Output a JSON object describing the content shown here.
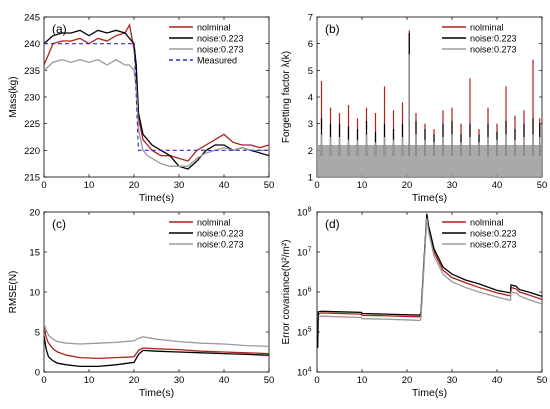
{
  "colors": {
    "nominal": "#b0201c",
    "noise223": "#000000",
    "noise273": "#9a9a9a",
    "measured": "#2b2bd6",
    "highlight": "#f2a0b6"
  },
  "chart_data": [
    {
      "panel_label": "(a)",
      "type": "line",
      "xlabel": "Time(s)",
      "ylabel": "Mass(kg)",
      "xlim": [
        0,
        50
      ],
      "ylim": [
        215,
        245
      ],
      "xticks": [
        0,
        10,
        20,
        30,
        40,
        50
      ],
      "yticks": [
        215,
        220,
        225,
        230,
        235,
        240,
        245
      ],
      "xtick_labels": [
        "0",
        "10",
        "20",
        "30",
        "40",
        "50"
      ],
      "ytick_labels": [
        "215",
        "220",
        "225",
        "230",
        "235",
        "240",
        "245"
      ],
      "legend_position": "top-right",
      "legend": [
        "nolminal",
        "noise:0.223",
        "noise:0.273",
        "Measured"
      ],
      "series": [
        {
          "name": "nolminal",
          "color_key": "nominal",
          "x": [
            0,
            2,
            4,
            6,
            8,
            10,
            12,
            14,
            16,
            18,
            19,
            20,
            20.5,
            21,
            22,
            23,
            24,
            26,
            28,
            30,
            32,
            34,
            36,
            38,
            40,
            42,
            44,
            46,
            48,
            50
          ],
          "y": [
            236,
            240,
            240.5,
            240.5,
            241,
            240,
            241,
            240.5,
            241.5,
            242,
            243.5,
            239,
            235,
            226,
            222,
            221,
            220,
            219,
            219,
            218.5,
            218,
            220,
            221,
            222,
            223,
            221.5,
            221,
            221,
            220.5,
            221
          ]
        },
        {
          "name": "noise:0.223",
          "color_key": "noise223",
          "x": [
            0,
            2,
            4,
            6,
            8,
            10,
            12,
            14,
            16,
            18,
            19,
            20,
            20.5,
            21,
            22,
            23,
            24,
            26,
            28,
            30,
            32,
            34,
            36,
            38,
            40,
            42,
            44,
            46,
            48,
            50
          ],
          "y": [
            240,
            241.5,
            242,
            242,
            242.5,
            241.5,
            242.5,
            242,
            242.5,
            242,
            241,
            240,
            236,
            227,
            223,
            222,
            221,
            220,
            219,
            217,
            216.5,
            218,
            220,
            221,
            221,
            220,
            220.5,
            220,
            219.5,
            219
          ]
        },
        {
          "name": "noise:0.273",
          "color_key": "noise273",
          "x": [
            0,
            2,
            4,
            6,
            8,
            10,
            12,
            14,
            16,
            18,
            19,
            20,
            20.5,
            21,
            22,
            23,
            24,
            26,
            28,
            30,
            32,
            34,
            36,
            38,
            40,
            42,
            44,
            46,
            48,
            50
          ],
          "y": [
            235,
            236.5,
            237,
            236.5,
            237,
            236.5,
            237,
            236,
            237,
            236,
            236,
            235,
            232,
            224,
            220,
            219,
            218.5,
            217.5,
            217,
            217,
            217,
            218.5,
            219.5,
            220,
            220.5,
            220,
            220.5,
            220,
            220,
            220
          ]
        },
        {
          "name": "Measured",
          "color_key": "measured",
          "dashed": true,
          "x": [
            0,
            20,
            21,
            50
          ],
          "y": [
            240,
            240,
            220,
            220
          ]
        }
      ]
    },
    {
      "panel_label": "(b)",
      "type": "line",
      "xlabel": "Time(s)",
      "ylabel": "Forgetting factor λ(k)",
      "xlim": [
        0,
        50
      ],
      "ylim": [
        1,
        7
      ],
      "xticks": [
        0,
        10,
        20,
        30,
        40,
        50
      ],
      "yticks": [
        1,
        2,
        3,
        4,
        5,
        6,
        7
      ],
      "xtick_labels": [
        "0",
        "10",
        "20",
        "30",
        "40",
        "50"
      ],
      "ytick_labels": [
        "1",
        "2",
        "3",
        "4",
        "5",
        "6",
        "7"
      ],
      "legend_position": "top-right",
      "legend": [
        "nolminal",
        "noise:0.223",
        "noise:0.273"
      ],
      "series": [
        {
          "name": "nolminal",
          "color_key": "nominal",
          "x": [
            1,
            3,
            5,
            7,
            9,
            11,
            13,
            15,
            17,
            19,
            20.5,
            22,
            24,
            26,
            28,
            30,
            32,
            34,
            36,
            38,
            40,
            42,
            44,
            46,
            48,
            49.5
          ],
          "y": [
            4.6,
            3.6,
            3.4,
            3.7,
            3.2,
            3.6,
            3.4,
            4.4,
            3.5,
            3.8,
            6.5,
            3.4,
            3.0,
            2.8,
            3.5,
            3.6,
            3.0,
            4.7,
            2.8,
            3.6,
            3.0,
            4.4,
            3.3,
            3.5,
            5.4,
            3.2
          ]
        },
        {
          "name": "noise:0.223",
          "color_key": "noise223",
          "x": [
            1,
            3,
            5,
            7,
            9,
            11,
            13,
            15,
            17,
            19,
            20.5,
            22,
            24,
            26,
            28,
            30,
            32,
            34,
            36,
            38,
            40,
            42,
            44,
            46,
            48,
            49.5
          ],
          "y": [
            3.2,
            3.0,
            3.0,
            2.9,
            2.8,
            3.1,
            2.7,
            3.0,
            2.8,
            3.0,
            6.4,
            3.1,
            2.8,
            2.6,
            3.0,
            3.1,
            2.6,
            3.0,
            2.6,
            3.0,
            2.7,
            3.1,
            2.8,
            3.0,
            3.2,
            3.0
          ]
        },
        {
          "name": "noise:0.273",
          "color_key": "noise273",
          "x": [
            1,
            3,
            5,
            7,
            9,
            11,
            13,
            15,
            17,
            19,
            20.5,
            22,
            24,
            26,
            28,
            30,
            32,
            34,
            36,
            38,
            40,
            42,
            44,
            46,
            48,
            49.5
          ],
          "y": [
            2.6,
            2.5,
            2.5,
            2.4,
            2.4,
            2.6,
            2.3,
            2.5,
            2.4,
            2.5,
            5.6,
            2.6,
            2.4,
            2.3,
            2.5,
            2.6,
            2.3,
            2.5,
            2.3,
            2.5,
            2.4,
            2.6,
            2.4,
            2.5,
            2.6,
            2.5
          ]
        }
      ]
    },
    {
      "panel_label": "(c)",
      "type": "line",
      "xlabel": "Time(s)",
      "ylabel": "RMSE(N)",
      "xlim": [
        0,
        50
      ],
      "ylim": [
        0,
        20
      ],
      "xticks": [
        0,
        10,
        20,
        30,
        40,
        50
      ],
      "yticks": [
        0,
        5,
        10,
        15,
        20
      ],
      "xtick_labels": [
        "0",
        "10",
        "20",
        "30",
        "40",
        "50"
      ],
      "ytick_labels": [
        "0",
        "5",
        "10",
        "15",
        "20"
      ],
      "legend_position": "top-right",
      "legend": [
        "nolminal",
        "noise:0.223",
        "noise:0.273"
      ],
      "series": [
        {
          "name": "nolminal",
          "color_key": "nominal",
          "x": [
            0,
            0.5,
            1,
            2,
            3,
            5,
            8,
            12,
            16,
            20,
            21,
            22,
            25,
            30,
            35,
            40,
            45,
            50
          ],
          "y": [
            5.6,
            4.3,
            3.6,
            2.9,
            2.5,
            2.1,
            1.8,
            1.7,
            1.8,
            1.9,
            2.7,
            3.0,
            2.9,
            2.8,
            2.6,
            2.5,
            2.4,
            2.3
          ]
        },
        {
          "name": "noise:0.223",
          "color_key": "noise223",
          "x": [
            0,
            0.5,
            1,
            2,
            3,
            5,
            8,
            12,
            16,
            20,
            21,
            22,
            25,
            30,
            35,
            40,
            45,
            50
          ],
          "y": [
            4.5,
            2.8,
            1.9,
            1.4,
            1.1,
            0.9,
            0.7,
            0.7,
            0.9,
            1.2,
            2.2,
            2.7,
            2.6,
            2.5,
            2.4,
            2.3,
            2.2,
            2.1
          ]
        },
        {
          "name": "noise:0.273",
          "color_key": "noise273",
          "x": [
            0,
            0.5,
            1,
            2,
            3,
            5,
            8,
            12,
            16,
            20,
            21,
            22,
            25,
            30,
            35,
            40,
            45,
            50
          ],
          "y": [
            6.0,
            5.2,
            4.6,
            4.1,
            3.8,
            3.6,
            3.5,
            3.6,
            3.7,
            3.9,
            4.2,
            4.4,
            4.1,
            3.8,
            3.6,
            3.5,
            3.3,
            3.2
          ]
        }
      ]
    },
    {
      "panel_label": "(d)",
      "type": "line",
      "xlabel": "Time(s)",
      "ylabel": "Error covariance(N²/m²)",
      "xlim": [
        0,
        50
      ],
      "ylim": [
        10000,
        100000000
      ],
      "yscale": "log",
      "xticks": [
        0,
        10,
        20,
        30,
        40,
        50
      ],
      "yticks": [
        10000,
        100000,
        1000000,
        10000000,
        100000000
      ],
      "xtick_labels": [
        "0",
        "10",
        "20",
        "30",
        "40",
        "50"
      ],
      "ytick_labels": [
        "10",
        "10",
        "10",
        "10",
        "10"
      ],
      "ytick_exponents": [
        "4",
        "5",
        "6",
        "7",
        "8"
      ],
      "legend_position": "top-right",
      "legend": [
        "nolminal",
        "noise:0.223",
        "noise:0.273"
      ],
      "series": [
        {
          "name": "nolminal",
          "color_key": "nominal",
          "x": [
            0.3,
            1,
            5,
            9.9,
            10,
            15,
            20,
            22.9,
            23.1,
            24.4,
            24.8,
            26,
            28,
            30,
            33,
            36,
            40,
            43,
            43.1,
            44.2,
            45,
            47,
            50
          ],
          "y": [
            280000,
            300000,
            290000,
            280000,
            260000,
            255000,
            245000,
            240000,
            280000,
            80000000,
            40000000,
            10000000,
            3500000,
            2300000,
            1700000,
            1300000,
            950000,
            800000,
            1300000,
            1200000,
            1000000,
            850000,
            650000
          ]
        },
        {
          "name": "noise:0.223",
          "color_key": "noise223",
          "x": [
            0.15,
            0.3,
            1,
            5,
            9.9,
            10,
            15,
            20,
            22.9,
            23.1,
            24.4,
            24.8,
            26,
            28,
            30,
            33,
            36,
            40,
            43,
            43.1,
            44.2,
            45,
            47,
            50
          ],
          "y": [
            40000,
            320000,
            330000,
            320000,
            310000,
            290000,
            280000,
            270000,
            265000,
            300000,
            90000000,
            45000000,
            12000000,
            4200000,
            2800000,
            2000000,
            1600000,
            1100000,
            950000,
            1500000,
            1400000,
            1150000,
            1000000,
            780000
          ]
        },
        {
          "name": "noise:0.273",
          "color_key": "noise273",
          "x": [
            0.3,
            1,
            5,
            9.9,
            10,
            15,
            20,
            22.9,
            23.1,
            24.4,
            24.8,
            26,
            28,
            30,
            33,
            36,
            40,
            43,
            43.1,
            44.2,
            45,
            47,
            50
          ],
          "y": [
            240000,
            250000,
            240000,
            230000,
            215000,
            210000,
            200000,
            195000,
            220000,
            70000000,
            32000000,
            8000000,
            2800000,
            1800000,
            1300000,
            1000000,
            750000,
            620000,
            1000000,
            950000,
            800000,
            650000,
            500000
          ]
        }
      ]
    }
  ]
}
